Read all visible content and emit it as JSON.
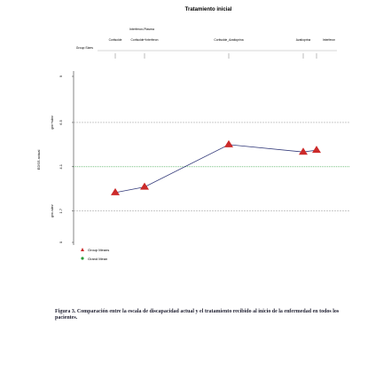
{
  "chart_data": {
    "type": "line",
    "title": "Tratamiento inicial",
    "top_label": "Interferon-Plasma",
    "group_sizes_label": "Group Sizes",
    "y_label": "EDSS actual",
    "categories": [
      "Cortisolde",
      "Cortisolde+Interferon",
      "Cortisolde_Azatioprina",
      "Azatioprina",
      "Interferon"
    ],
    "series": [
      {
        "name": "Group Means",
        "color": "#cc2a2a",
        "values": [
          2.7,
          3.0,
          5.3,
          4.9,
          5.0
        ]
      }
    ],
    "grand_mean": {
      "name": "Grand Mean",
      "value": 4.1,
      "color": "#2a9d3a"
    },
    "limits": [
      {
        "label": "grm+sdev",
        "value": 6.5
      },
      {
        "label": "grm-sdev",
        "value": 1.7
      }
    ],
    "ylim": [
      0,
      9
    ],
    "yticks": [
      0,
      1.7,
      4.1,
      6.5,
      9
    ]
  },
  "caption": "Figura 3. Comparación entre la escala de discapacidad actual y el tratamiento recibido al inicio de la enfermedad en todos los pacientes."
}
